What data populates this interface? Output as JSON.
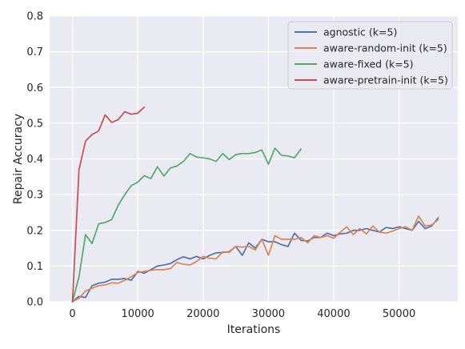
{
  "chart_data": {
    "type": "line",
    "xlabel": "Iterations",
    "ylabel": "Repair Accuracy",
    "xlim": [
      -3500,
      59000
    ],
    "ylim": [
      0,
      0.8
    ],
    "xticks": [
      0,
      10000,
      20000,
      30000,
      40000,
      50000
    ],
    "yticks": [
      0.0,
      0.1,
      0.2,
      0.3,
      0.4,
      0.5,
      0.6,
      0.7,
      0.8
    ],
    "xtick_labels": [
      "0",
      "10000",
      "20000",
      "30000",
      "40000",
      "50000"
    ],
    "ytick_labels": [
      "0.0",
      "0.1",
      "0.2",
      "0.3",
      "0.4",
      "0.5",
      "0.6",
      "0.7",
      "0.8"
    ],
    "grid": true,
    "legend_position": "top-right",
    "series": [
      {
        "name": "agnostic (k=5)",
        "color": "#4c72b0",
        "x": [
          0,
          1000,
          2000,
          3000,
          4000,
          5000,
          6000,
          7000,
          8000,
          9000,
          10000,
          11000,
          12000,
          13000,
          14000,
          15000,
          16000,
          17000,
          18000,
          19000,
          20000,
          21000,
          22000,
          23000,
          24000,
          25000,
          26000,
          27000,
          28000,
          29000,
          30000,
          31000,
          32000,
          33000,
          34000,
          35000,
          36000,
          37000,
          38000,
          39000,
          40000,
          41000,
          42000,
          43000,
          44000,
          45000,
          46000,
          47000,
          48000,
          49000,
          50000,
          51000,
          52000,
          53000,
          54000,
          55000,
          56000
        ],
        "values": [
          0.0,
          0.015,
          0.012,
          0.045,
          0.052,
          0.055,
          0.063,
          0.063,
          0.065,
          0.06,
          0.085,
          0.08,
          0.09,
          0.1,
          0.103,
          0.107,
          0.118,
          0.126,
          0.12,
          0.127,
          0.12,
          0.13,
          0.137,
          0.138,
          0.14,
          0.155,
          0.13,
          0.165,
          0.15,
          0.175,
          0.168,
          0.168,
          0.16,
          0.155,
          0.192,
          0.172,
          0.17,
          0.18,
          0.18,
          0.192,
          0.185,
          0.19,
          0.192,
          0.2,
          0.2,
          0.205,
          0.2,
          0.195,
          0.208,
          0.205,
          0.21,
          0.205,
          0.2,
          0.225,
          0.205,
          0.212,
          0.235
        ]
      },
      {
        "name": "aware-random-init (k=5)",
        "color": "#dd8452",
        "x": [
          0,
          1000,
          2000,
          3000,
          4000,
          5000,
          6000,
          7000,
          8000,
          9000,
          10000,
          11000,
          12000,
          13000,
          14000,
          15000,
          16000,
          17000,
          18000,
          19000,
          20000,
          21000,
          22000,
          23000,
          24000,
          25000,
          26000,
          27000,
          28000,
          29000,
          30000,
          31000,
          32000,
          33000,
          34000,
          35000,
          36000,
          37000,
          38000,
          39000,
          40000,
          41000,
          42000,
          43000,
          44000,
          45000,
          46000,
          47000,
          48000,
          49000,
          50000,
          51000,
          52000,
          53000,
          54000,
          55000,
          56000
        ],
        "values": [
          0.0,
          0.01,
          0.03,
          0.038,
          0.045,
          0.047,
          0.053,
          0.052,
          0.06,
          0.07,
          0.082,
          0.085,
          0.088,
          0.09,
          0.09,
          0.093,
          0.11,
          0.105,
          0.103,
          0.113,
          0.127,
          0.122,
          0.12,
          0.14,
          0.138,
          0.155,
          0.153,
          0.155,
          0.145,
          0.175,
          0.13,
          0.185,
          0.175,
          0.175,
          0.175,
          0.18,
          0.165,
          0.185,
          0.18,
          0.185,
          0.178,
          0.195,
          0.21,
          0.188,
          0.205,
          0.19,
          0.212,
          0.195,
          0.192,
          0.198,
          0.205,
          0.21,
          0.2,
          0.24,
          0.212,
          0.215,
          0.23
        ]
      },
      {
        "name": "aware-fixed (k=5)",
        "color": "#55a868",
        "x": [
          0,
          1000,
          2000,
          3000,
          4000,
          5000,
          6000,
          7000,
          8000,
          9000,
          10000,
          11000,
          12000,
          13000,
          14000,
          15000,
          16000,
          17000,
          18000,
          19000,
          20000,
          21000,
          22000,
          23000,
          24000,
          25000,
          26000,
          27000,
          28000,
          29000,
          30000,
          31000,
          32000,
          33000,
          34000,
          35000
        ],
        "values": [
          0.0,
          0.07,
          0.188,
          0.163,
          0.218,
          0.222,
          0.23,
          0.27,
          0.3,
          0.325,
          0.335,
          0.353,
          0.345,
          0.378,
          0.352,
          0.375,
          0.38,
          0.393,
          0.415,
          0.405,
          0.403,
          0.4,
          0.393,
          0.415,
          0.398,
          0.412,
          0.415,
          0.415,
          0.418,
          0.425,
          0.385,
          0.43,
          0.41,
          0.408,
          0.403,
          0.428
        ]
      },
      {
        "name": "aware-pretrain-init (k=5)",
        "color": "#c44e52",
        "x": [
          0,
          1000,
          2000,
          3000,
          4000,
          5000,
          6000,
          7000,
          8000,
          9000,
          10000,
          11000
        ],
        "values": [
          0.0,
          0.37,
          0.45,
          0.468,
          0.478,
          0.523,
          0.502,
          0.51,
          0.532,
          0.525,
          0.528,
          0.545
        ]
      }
    ]
  }
}
